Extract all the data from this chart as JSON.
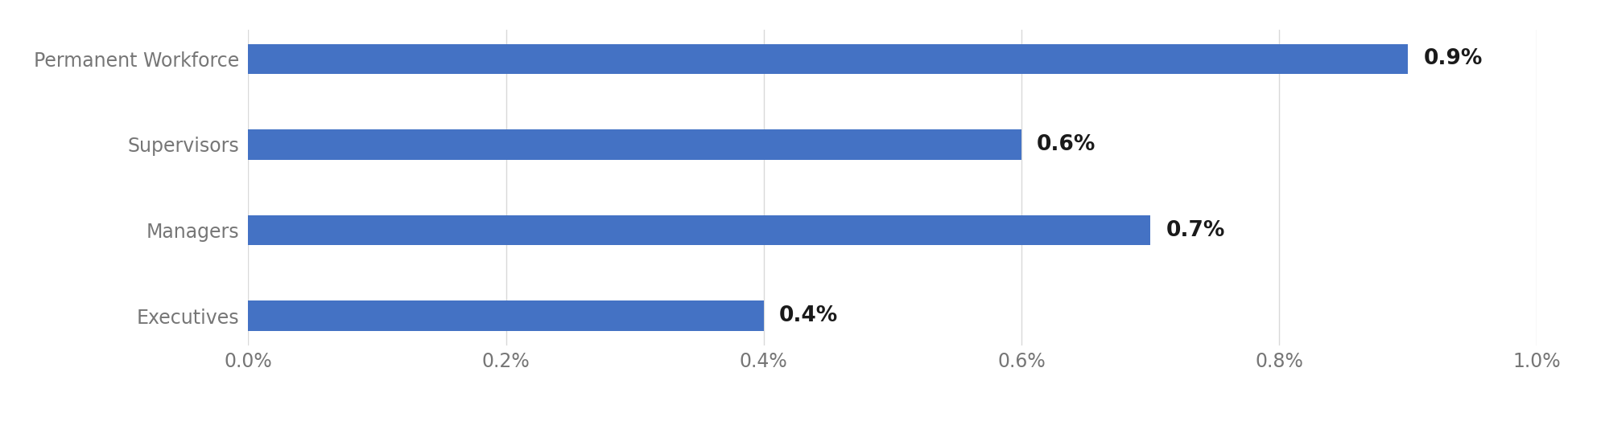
{
  "categories": [
    "Executives",
    "Managers",
    "Supervisors",
    "Permanent Workforce"
  ],
  "values": [
    0.004,
    0.007,
    0.006,
    0.009
  ],
  "bar_labels": [
    "0.4%",
    "0.7%",
    "0.6%",
    "0.9%"
  ],
  "bar_color": "#4472C4",
  "xlim": [
    0,
    0.01
  ],
  "xticks": [
    0.0,
    0.002,
    0.004,
    0.006,
    0.008,
    0.01
  ],
  "xtick_labels": [
    "0.0%",
    "0.2%",
    "0.4%",
    "0.6%",
    "0.8%",
    "1.0%"
  ],
  "background_color": "#ffffff",
  "bar_height": 0.35,
  "label_fontsize": 19,
  "tick_fontsize": 17,
  "label_color": "#1a1a1a",
  "grid_color": "#d9d9d9",
  "ytick_color": "#767676"
}
